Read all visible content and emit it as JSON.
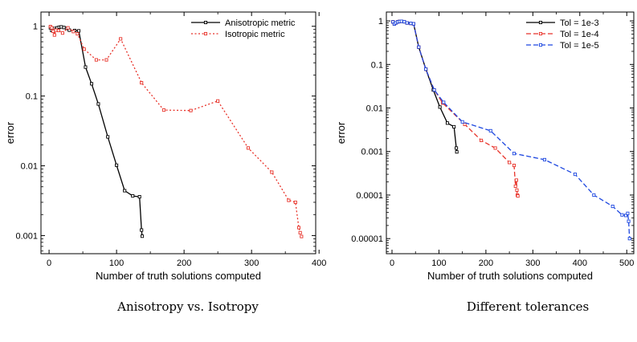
{
  "chart_data": [
    {
      "type": "line",
      "title": "",
      "caption": "Anisotropy vs. Isotropy",
      "xlabel": "Number of truth solutions computed",
      "ylabel": "error",
      "xlim": [
        -12,
        395
      ],
      "ylim": [
        0.00055,
        1.6
      ],
      "ylog": true,
      "xticks": [
        0,
        100,
        200,
        300,
        400
      ],
      "yticks": [
        1,
        0.1,
        0.01,
        0.001
      ],
      "ytick_labels": [
        "1",
        "0.1",
        "0.01",
        "0.001"
      ],
      "legend_position": "top-right",
      "series": [
        {
          "name": "Anisotropic metric",
          "color": "#000000",
          "dash": "solid",
          "x": [
            2,
            4,
            6,
            8,
            10,
            12,
            15,
            18,
            22,
            26,
            30,
            38,
            44,
            54,
            63,
            73,
            87,
            100,
            112,
            124,
            134,
            137,
            138
          ],
          "y": [
            0.95,
            0.87,
            0.9,
            0.93,
            0.89,
            0.95,
            0.97,
            0.98,
            0.96,
            0.93,
            0.88,
            0.87,
            0.86,
            0.26,
            0.15,
            0.077,
            0.026,
            0.0102,
            0.0044,
            0.0037,
            0.0036,
            0.0012,
            0.00098
          ]
        },
        {
          "name": "Isotropic metric",
          "color": "#e8332a",
          "dash": "dotted",
          "x": [
            2,
            4,
            6,
            8,
            10,
            14,
            20,
            28,
            36,
            42,
            52,
            70,
            85,
            106,
            137,
            170,
            210,
            250,
            295,
            330,
            355,
            365,
            370,
            372,
            374
          ],
          "y": [
            0.99,
            0.95,
            0.85,
            0.75,
            0.88,
            0.87,
            0.8,
            0.95,
            0.84,
            0.78,
            0.47,
            0.33,
            0.33,
            0.66,
            0.155,
            0.063,
            0.062,
            0.085,
            0.018,
            0.0081,
            0.0032,
            0.003,
            0.0013,
            0.0011,
            0.00097
          ]
        }
      ]
    },
    {
      "type": "line",
      "title": "",
      "caption": "Different tolerances",
      "xlabel": "Number of truth solutions computed",
      "ylabel": "error",
      "xlim": [
        -12,
        515
      ],
      "ylim": [
        4.5e-06,
        1.6
      ],
      "ylog": true,
      "xticks": [
        0,
        100,
        200,
        300,
        400,
        500
      ],
      "yticks": [
        1,
        0.1,
        0.01,
        0.001,
        0.0001,
        1e-05
      ],
      "ytick_labels": [
        "1",
        "0.1",
        "0.01",
        "0.001",
        "0.0001",
        "0.00001"
      ],
      "legend_position": "top-right",
      "series": [
        {
          "name": "Tol = 1e-3",
          "color": "#000000",
          "dash": "solid",
          "x": [
            2,
            5,
            8,
            12,
            16,
            20,
            26,
            32,
            40,
            46,
            57,
            72,
            88,
            102,
            118,
            132,
            137,
            138
          ],
          "y": [
            0.95,
            0.85,
            0.9,
            0.95,
            0.97,
            0.98,
            0.96,
            0.9,
            0.88,
            0.86,
            0.25,
            0.078,
            0.026,
            0.0105,
            0.0045,
            0.0037,
            0.0012,
            0.00098
          ]
        },
        {
          "name": "Tol = 1e-4",
          "color": "#e8332a",
          "dash": "dashed",
          "x": [
            2,
            5,
            8,
            12,
            16,
            20,
            26,
            32,
            40,
            46,
            57,
            72,
            90,
            108,
            155,
            190,
            220,
            250,
            260,
            263,
            265,
            266,
            267,
            268
          ],
          "y": [
            0.95,
            0.85,
            0.9,
            0.95,
            0.97,
            0.98,
            0.96,
            0.9,
            0.88,
            0.86,
            0.25,
            0.078,
            0.026,
            0.013,
            0.0042,
            0.0018,
            0.0012,
            0.00056,
            0.00048,
            0.00016,
            0.00022,
            0.00013,
            0.0001,
            9.5e-05
          ]
        },
        {
          "name": "Tol = 1e-5",
          "color": "#1d47e0",
          "dash": "dashed",
          "x": [
            2,
            5,
            8,
            12,
            16,
            20,
            26,
            32,
            40,
            46,
            57,
            72,
            90,
            110,
            150,
            210,
            260,
            325,
            390,
            430,
            470,
            490,
            498,
            502,
            504,
            506
          ],
          "y": [
            0.95,
            0.85,
            0.9,
            0.95,
            0.97,
            0.98,
            0.96,
            0.9,
            0.88,
            0.86,
            0.25,
            0.078,
            0.026,
            0.0135,
            0.0048,
            0.003,
            0.0009,
            0.00065,
            0.0003,
            0.0001,
            5.5e-05,
            3.5e-05,
            3.4e-05,
            3.8e-05,
            2.5e-05,
            1e-05
          ]
        }
      ]
    }
  ]
}
